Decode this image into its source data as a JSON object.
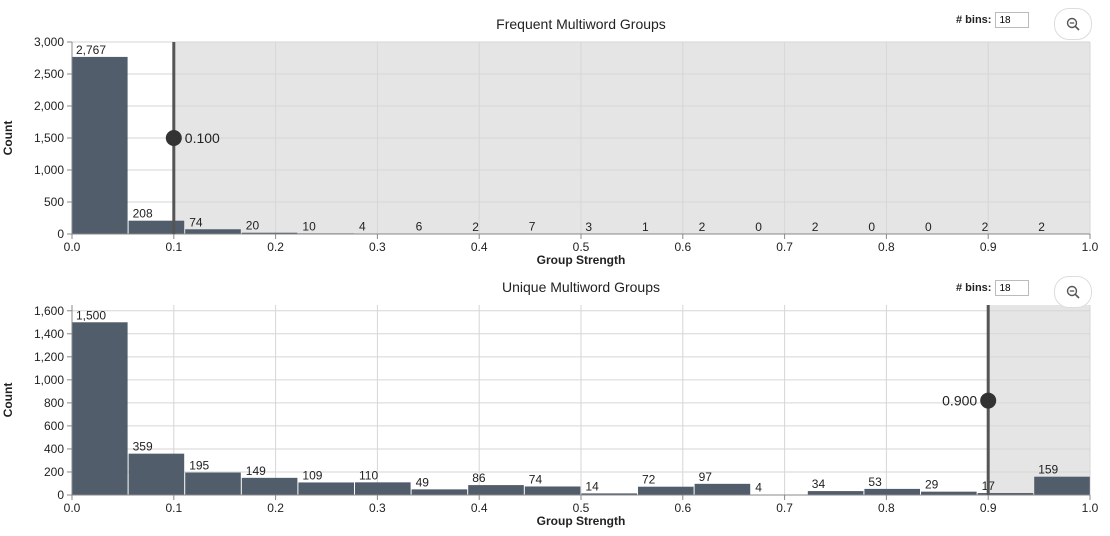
{
  "controls": {
    "bins_label": "# bins:",
    "bins_value": "18"
  },
  "chart_data": [
    {
      "type": "bar",
      "title": "Frequent Multiword Groups",
      "xlabel": "Group Strength",
      "ylabel": "Count",
      "xlim": [
        0,
        1
      ],
      "ylim": [
        0,
        3000
      ],
      "x_ticks": [
        "0.0",
        "0.1",
        "0.2",
        "0.3",
        "0.4",
        "0.5",
        "0.6",
        "0.7",
        "0.8",
        "0.9",
        "1.0"
      ],
      "y_ticks": [
        "0",
        "500",
        "1,000",
        "1,500",
        "2,000",
        "2,500",
        "3,000"
      ],
      "bin_edges_start": 0,
      "bin_width": 0.0556,
      "values": [
        2767,
        208,
        74,
        20,
        10,
        4,
        6,
        2,
        7,
        3,
        1,
        2,
        0,
        2,
        0,
        0,
        2,
        2
      ],
      "value_labels": [
        "2,767",
        "208",
        "74",
        "20",
        "10",
        "4",
        "6",
        "2",
        "7",
        "3",
        "1",
        "2",
        "0",
        "2",
        "0",
        "0",
        "2",
        "2"
      ],
      "threshold": 0.1,
      "threshold_label": "0.100",
      "threshold_marker_y": 1500,
      "shaded_region": "right-of-threshold",
      "bar_color": "#525d6b",
      "shade_color": "#e5e5e5"
    },
    {
      "type": "bar",
      "title": "Unique Multiword Groups",
      "xlabel": "Group Strength",
      "ylabel": "Count",
      "xlim": [
        0,
        1
      ],
      "ylim": [
        0,
        1650
      ],
      "x_ticks": [
        "0.0",
        "0.1",
        "0.2",
        "0.3",
        "0.4",
        "0.5",
        "0.6",
        "0.7",
        "0.8",
        "0.9",
        "1.0"
      ],
      "y_ticks": [
        "0",
        "200",
        "400",
        "600",
        "800",
        "1,000",
        "1,200",
        "1,400",
        "1,600"
      ],
      "bin_edges_start": 0,
      "bin_width": 0.0556,
      "values": [
        1500,
        359,
        195,
        149,
        109,
        110,
        49,
        86,
        74,
        14,
        72,
        97,
        4,
        34,
        53,
        29,
        17,
        159
      ],
      "value_labels": [
        "1,500",
        "359",
        "195",
        "149",
        "109",
        "110",
        "49",
        "86",
        "74",
        "14",
        "72",
        "97",
        "4",
        "34",
        "53",
        "29",
        "17",
        "159"
      ],
      "threshold": 0.9,
      "threshold_label": "0.900",
      "threshold_marker_y": 820,
      "shaded_region": "right-of-threshold",
      "bar_color": "#525d6b",
      "shade_color": "#e5e5e5"
    }
  ]
}
